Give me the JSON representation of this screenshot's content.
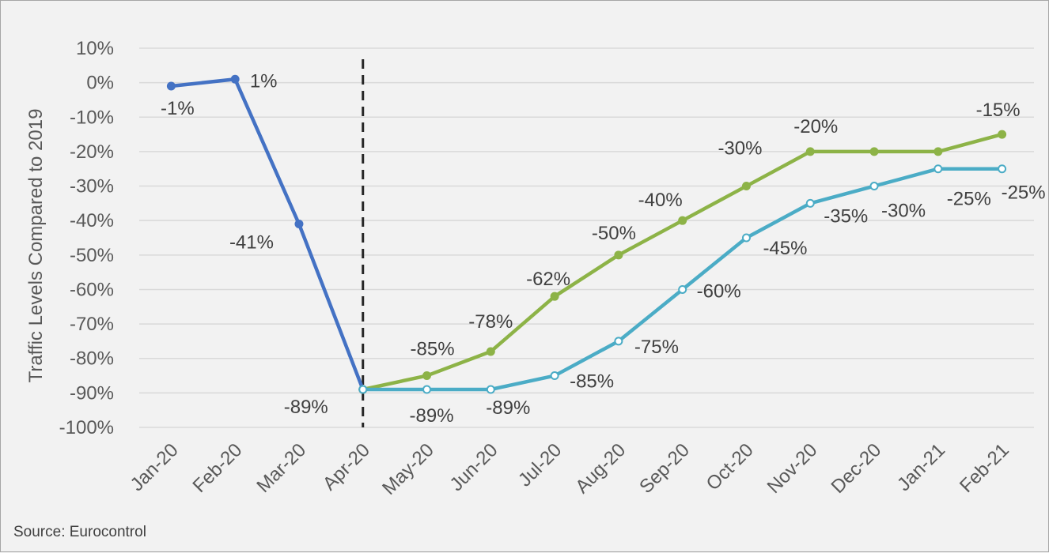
{
  "chart_data": {
    "type": "line",
    "categories": [
      "Jan-20",
      "Feb-20",
      "Mar-20",
      "Apr-20",
      "May-20",
      "Jun-20",
      "Jul-20",
      "Aug-20",
      "Sep-20",
      "Oct-20",
      "Nov-20",
      "Dec-20",
      "Jan-21",
      "Feb-21"
    ],
    "ylabel": "Traffic Levels Compared to 2019",
    "ylim": [
      -100,
      10
    ],
    "yticks": [
      10,
      0,
      -10,
      -20,
      -30,
      -40,
      -50,
      -60,
      -70,
      -80,
      -90,
      -100
    ],
    "ytick_labels": [
      "10%",
      "0%",
      "-10%",
      "-20%",
      "-30%",
      "-40%",
      "-50%",
      "-60%",
      "-70%",
      "-80%",
      "-90%",
      "-100%"
    ],
    "grid": true,
    "series": [
      {
        "color": "#4472c4",
        "marker": "filled",
        "values": [
          -1,
          1,
          -41,
          -89,
          null,
          null,
          null,
          null,
          null,
          null,
          null,
          null,
          null,
          null
        ],
        "labels": [
          "-1%",
          "1%",
          "-41%",
          "-89%",
          null,
          null,
          null,
          null,
          null,
          null,
          null,
          null,
          null,
          null
        ]
      },
      {
        "color": "#8db347",
        "marker": "filled",
        "values": [
          null,
          null,
          null,
          -89,
          -85,
          -78,
          -62,
          -50,
          -40,
          -30,
          -20,
          -20,
          -20,
          -15
        ],
        "labels": [
          null,
          null,
          null,
          null,
          "-85%",
          "-78%",
          "-62%",
          "-50%",
          "-40%",
          "-30%",
          "-20%",
          null,
          null,
          "-15%"
        ]
      },
      {
        "color": "#4bacc6",
        "marker": "hollow",
        "values": [
          null,
          null,
          null,
          -89,
          -89,
          -89,
          -85,
          -75,
          -60,
          -45,
          -35,
          -30,
          -25,
          -25
        ],
        "labels": [
          null,
          null,
          null,
          null,
          "-89%",
          "-89%",
          "-85%",
          "-75%",
          "-60%",
          "-45%",
          "-35%",
          "-30%",
          "-25%",
          "-25%"
        ]
      }
    ],
    "vline_at": "Apr-20",
    "source": "Source: Eurocontrol"
  }
}
